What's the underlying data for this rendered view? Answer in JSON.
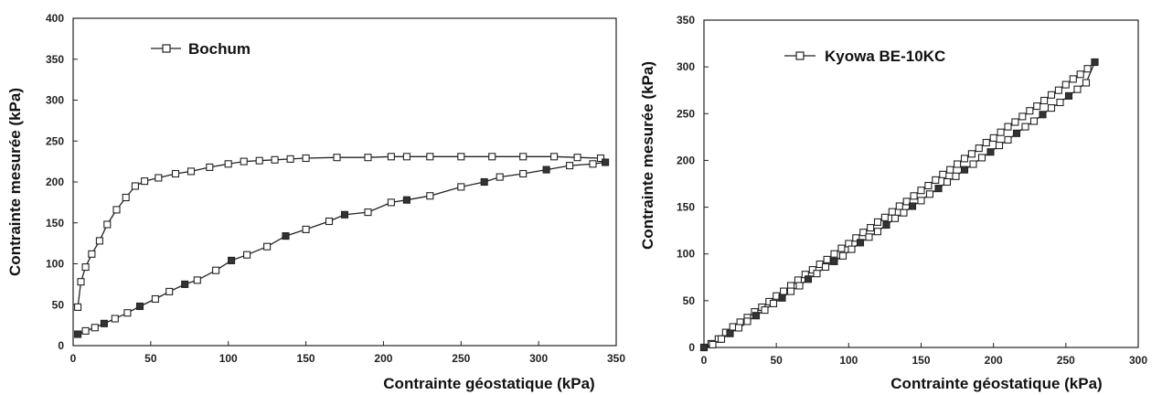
{
  "chart_data": [
    {
      "type": "line",
      "xlabel": "Contrainte géostatique (kPa)",
      "ylabel": "Contrainte mesurée (kPa)",
      "xlim": [
        0,
        350
      ],
      "ylim": [
        0,
        400
      ],
      "xticks": [
        "0",
        "50",
        "100",
        "150",
        "200",
        "250",
        "300",
        "350"
      ],
      "yticks": [
        "0",
        "50",
        "100",
        "150",
        "200",
        "250",
        "300",
        "350",
        "400"
      ],
      "legend": {
        "label": "Bochum",
        "position": "top-left"
      },
      "grid": false,
      "series": [
        {
          "name": "Bochum",
          "x": [
            3,
            5,
            8,
            12,
            17,
            22,
            28,
            34,
            40,
            46,
            55,
            66,
            76,
            88,
            100,
            110,
            120,
            130,
            140,
            150,
            170,
            190,
            205,
            215,
            230,
            250,
            270,
            290,
            310,
            325,
            340
          ],
          "y": [
            47,
            78,
            96,
            112,
            128,
            148,
            166,
            181,
            195,
            201,
            205,
            210,
            213,
            218,
            222,
            225,
            226,
            227,
            228,
            229,
            230,
            230,
            231,
            231,
            231,
            231,
            231,
            231,
            231,
            230,
            229
          ]
        },
        {
          "name": "",
          "x": [
            3,
            8,
            14,
            20,
            27,
            35,
            43,
            53,
            62,
            72,
            80,
            92,
            102,
            112,
            125,
            137,
            150,
            165,
            175,
            190,
            205,
            215,
            230,
            250,
            265,
            275,
            290,
            305,
            320,
            335,
            343
          ],
          "y": [
            14,
            18,
            22,
            27,
            33,
            40,
            48,
            57,
            66,
            75,
            80,
            92,
            104,
            111,
            121,
            134,
            142,
            152,
            160,
            163,
            175,
            178,
            183,
            194,
            200,
            206,
            210,
            215,
            220,
            222,
            224
          ]
        }
      ]
    },
    {
      "type": "line",
      "xlabel": "Contrainte géostatique (kPa)",
      "ylabel": "Contrainte mesurée (kPa)",
      "xlim": [
        0,
        300
      ],
      "ylim": [
        0,
        350
      ],
      "xticks": [
        "0",
        "50",
        "100",
        "150",
        "200",
        "250",
        "300"
      ],
      "yticks": [
        "0",
        "50",
        "100",
        "150",
        "200",
        "250",
        "300",
        "350"
      ],
      "legend": {
        "label": "Kyowa BE-10KC",
        "position": "top-left"
      },
      "grid": false,
      "series": [
        {
          "name": "Kyowa BE-10KC",
          "x": [
            0,
            5,
            10,
            15,
            20,
            25,
            30,
            35,
            40,
            45,
            50,
            55,
            60,
            65,
            70,
            75,
            80,
            85,
            90,
            95,
            100,
            105,
            110,
            115,
            120,
            125,
            130,
            135,
            140,
            145,
            150,
            155,
            160,
            165,
            170,
            175,
            180,
            185,
            190,
            195,
            200,
            205,
            210,
            215,
            220,
            225,
            230,
            235,
            240,
            245,
            250,
            255,
            260,
            265,
            270
          ],
          "y": [
            0,
            4,
            9,
            16,
            22,
            27,
            32,
            38,
            43,
            49,
            55,
            60,
            66,
            72,
            78,
            83,
            89,
            94,
            100,
            106,
            111,
            117,
            123,
            128,
            134,
            139,
            145,
            151,
            156,
            162,
            168,
            173,
            179,
            185,
            190,
            196,
            202,
            207,
            213,
            219,
            224,
            230,
            236,
            241,
            247,
            253,
            258,
            264,
            270,
            275,
            281,
            287,
            292,
            298,
            305
          ]
        },
        {
          "name": "",
          "x": [
            0,
            6,
            12,
            18,
            24,
            30,
            36,
            42,
            48,
            54,
            60,
            66,
            72,
            78,
            84,
            90,
            96,
            102,
            108,
            114,
            120,
            126,
            132,
            138,
            144,
            150,
            156,
            162,
            168,
            174,
            180,
            186,
            192,
            198,
            204,
            210,
            216,
            222,
            228,
            234,
            240,
            246,
            252,
            258,
            264,
            270
          ],
          "y": [
            0,
            3,
            9,
            15,
            21,
            28,
            34,
            40,
            47,
            53,
            60,
            66,
            73,
            79,
            86,
            92,
            98,
            105,
            112,
            118,
            124,
            131,
            138,
            144,
            151,
            157,
            164,
            170,
            177,
            183,
            190,
            196,
            203,
            209,
            216,
            222,
            229,
            236,
            242,
            249,
            256,
            262,
            269,
            276,
            283,
            305
          ]
        }
      ]
    }
  ]
}
